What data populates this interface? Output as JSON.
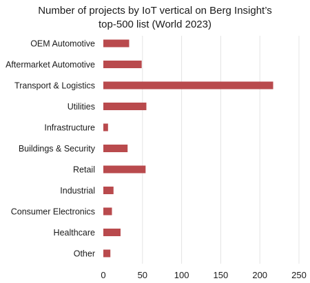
{
  "chart_data": {
    "type": "bar",
    "orientation": "horizontal",
    "title_lines": [
      "Number of projects by IoT vertical on Berg Insight’s",
      "top-500 list (World 2023)"
    ],
    "categories": [
      "OEM Automotive",
      "Aftermarket Automotive",
      "Transport & Logistics",
      "Utilities",
      "Infrastructure",
      "Buildings & Security",
      "Retail",
      "Industrial",
      "Consumer Electronics",
      "Healthcare",
      "Other"
    ],
    "values": [
      33,
      49,
      217,
      55,
      6,
      31,
      54,
      13,
      11,
      22,
      9
    ],
    "xlim": [
      0,
      250
    ],
    "xticks": [
      0,
      50,
      100,
      150,
      200,
      250
    ],
    "xlabel": "",
    "ylabel": "",
    "grid": "vertical",
    "bar_color": "#b94a4d",
    "legend": "none"
  }
}
